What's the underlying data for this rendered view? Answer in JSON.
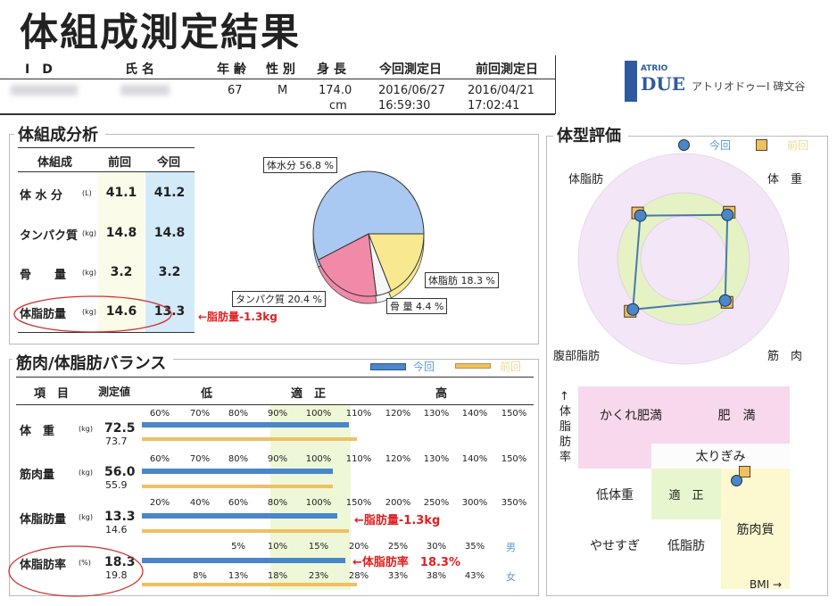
{
  "title": "体組成測定結果",
  "header": {
    "labels": {
      "id": "I　D",
      "name": "氏 名",
      "age": "年 齢",
      "sex": "性 別",
      "height": "身 長",
      "current_date": "今回測定日",
      "previous_date": "前回測定日"
    },
    "values": {
      "age": "67",
      "sex": "M",
      "height": "174.0",
      "height_unit": "cm",
      "current_date": "2016/06/27",
      "current_time": "16:59:30",
      "previous_date": "2016/04/21",
      "previous_time": "17:02:41"
    },
    "logo": {
      "text": "ATRIO DUE",
      "sub": "アトリオドゥーⅠ 碑文谷"
    }
  },
  "composition": {
    "title": "体組成分析",
    "headers": [
      "体組成",
      "前回",
      "今回"
    ],
    "rows": [
      {
        "label": "体 水 分",
        "unit": "(L)",
        "prev": "41.1",
        "now": "41.2"
      },
      {
        "label": "タンパク質",
        "unit": "(kg)",
        "prev": "14.8",
        "now": "14.8"
      },
      {
        "label": "骨　　量",
        "unit": "(kg)",
        "prev": "3.2",
        "now": "3.2"
      },
      {
        "label": "体脂肪量",
        "unit": "(kg)",
        "prev": "14.6",
        "now": "13.3"
      }
    ],
    "annotation": "←脂肪量-1.3kg",
    "pie": {
      "slices": [
        {
          "name": "体脂肪",
          "value": 18.3,
          "label": "体脂肪 18.3 %",
          "color": "#f8e890"
        },
        {
          "name": "骨量",
          "value": 4.4,
          "label": "骨 量 4.4 %",
          "color": "#f6f6f6"
        },
        {
          "name": "タンパク質",
          "value": 20.4,
          "label": "タンパク質 20.4 %",
          "color": "#f08aa8"
        },
        {
          "name": "体水分",
          "value": 56.8,
          "label": "体水分 56.8 %",
          "color": "#a9c9f2"
        }
      ]
    }
  },
  "balance": {
    "title": "筋肉/体脂肪バランス",
    "legend": {
      "now": "今回",
      "prev": "前回",
      "now_color": "#4a86c8",
      "prev_color": "#f0c060"
    },
    "headers": {
      "item": "項　目",
      "value": "測定値",
      "low": "低",
      "normal": "適　正",
      "high": "高"
    },
    "rows": [
      {
        "label": "体　重",
        "unit": "(kg)",
        "now": "72.5",
        "prev": "73.7",
        "ticks": [
          "60%",
          "70%",
          "80%",
          "90%",
          "100%",
          "110%",
          "120%",
          "130%",
          "140%",
          "150%"
        ],
        "bar_now": 107.5,
        "bar_prev": 109.5
      },
      {
        "label": "筋肉量",
        "unit": "(kg)",
        "now": "56.0",
        "prev": "55.9",
        "ticks": [
          "60%",
          "70%",
          "80%",
          "90%",
          "100%",
          "110%",
          "120%",
          "130%",
          "140%",
          "150%"
        ],
        "bar_now": 103.5,
        "bar_prev": 103.5
      },
      {
        "label": "体脂肪量",
        "unit": "(kg)",
        "now": "13.3",
        "prev": "14.6",
        "ticks": [
          "20%",
          "40%",
          "60%",
          "80%",
          "100%",
          "150%",
          "200%",
          "250%",
          "300%",
          "350%"
        ],
        "bar_now": 123,
        "bar_prev": 138
      },
      {
        "label": "体脂肪率",
        "unit": "(%)",
        "now": "18.3",
        "prev": "19.8",
        "ticks": [
          "",
          "",
          "5%",
          "10%",
          "15%",
          "20%",
          "25%",
          "30%",
          "35%"
        ],
        "ticks_female": [
          "",
          "8%",
          "13%",
          "18%",
          "23%",
          "28%",
          "33%",
          "38%",
          "43%"
        ],
        "male": "男",
        "female": "女",
        "bar_now": 18.3,
        "bar_prev": 19.8
      }
    ],
    "annotation_fat": "←脂肪量-1.3kg",
    "annotation_rate": "←体脂肪率　18.3%"
  },
  "shape": {
    "title": "体型評価",
    "legend": {
      "now": "今回",
      "prev": "前回"
    },
    "radar": {
      "axes": [
        "体脂肪",
        "体　重",
        "筋　肉",
        "腹部脂肪"
      ],
      "now": [
        0.58,
        0.59,
        0.56,
        0.68
      ],
      "prev": [
        0.61,
        0.62,
        0.59,
        0.71
      ]
    },
    "matrix": {
      "y_label": "↑体脂肪率",
      "x_label": "BMI →",
      "cells": {
        "hidden_obese": "かくれ肥満",
        "obese": "肥　満",
        "overweight": "太りぎみ",
        "underweight": "低体重",
        "normal": "適　正",
        "muscular": "筋肉質",
        "too_thin": "やせすぎ",
        "low_fat": "低脂肪"
      },
      "result": "筋肉質"
    }
  }
}
